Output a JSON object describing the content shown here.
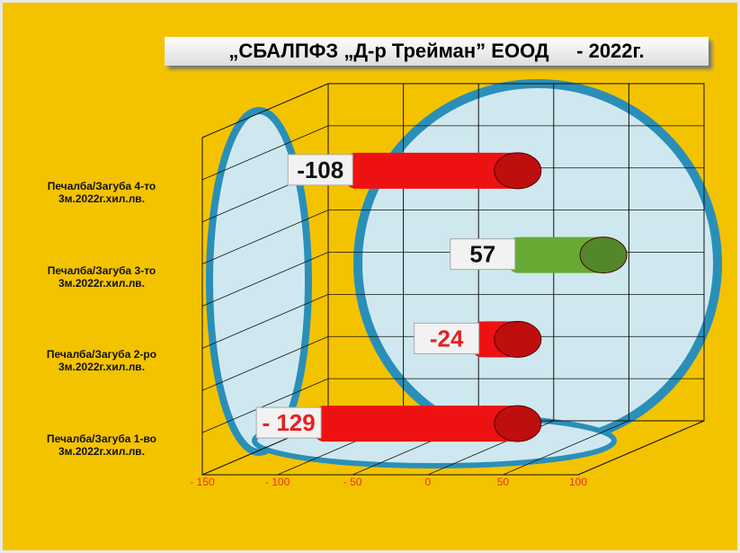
{
  "chart_data": {
    "type": "bar",
    "orientation": "horizontal",
    "title": "„СБАЛПФЗ „Д-р Трейман” ЕООД     - 2022г.",
    "categories": [
      "Печалба/Загуба 1-во 3м.2022г.хил.лв.",
      "Печалба/Загуба 2-ро 3м.2022г.хил.лв.",
      "Печалба/Загуба 3-то 3м.2022г.хил.лв.",
      "Печалба/Загуба 4-то 3м.2022г.хил.лв."
    ],
    "values": [
      -129,
      -24,
      57,
      -108
    ],
    "value_labels": [
      "- 129",
      "-24",
      "57",
      "-108"
    ],
    "colors": [
      "#ee1111",
      "#ee1111",
      "#66aa33",
      "#ee1111"
    ],
    "xlim": [
      -150,
      100
    ],
    "xticks": [
      {
        "value": -150,
        "label": "- 150"
      },
      {
        "value": -100,
        "label": "- 100"
      },
      {
        "value": -50,
        "label": "- 50"
      },
      0,
      50,
      100
    ],
    "grid": true
  }
}
